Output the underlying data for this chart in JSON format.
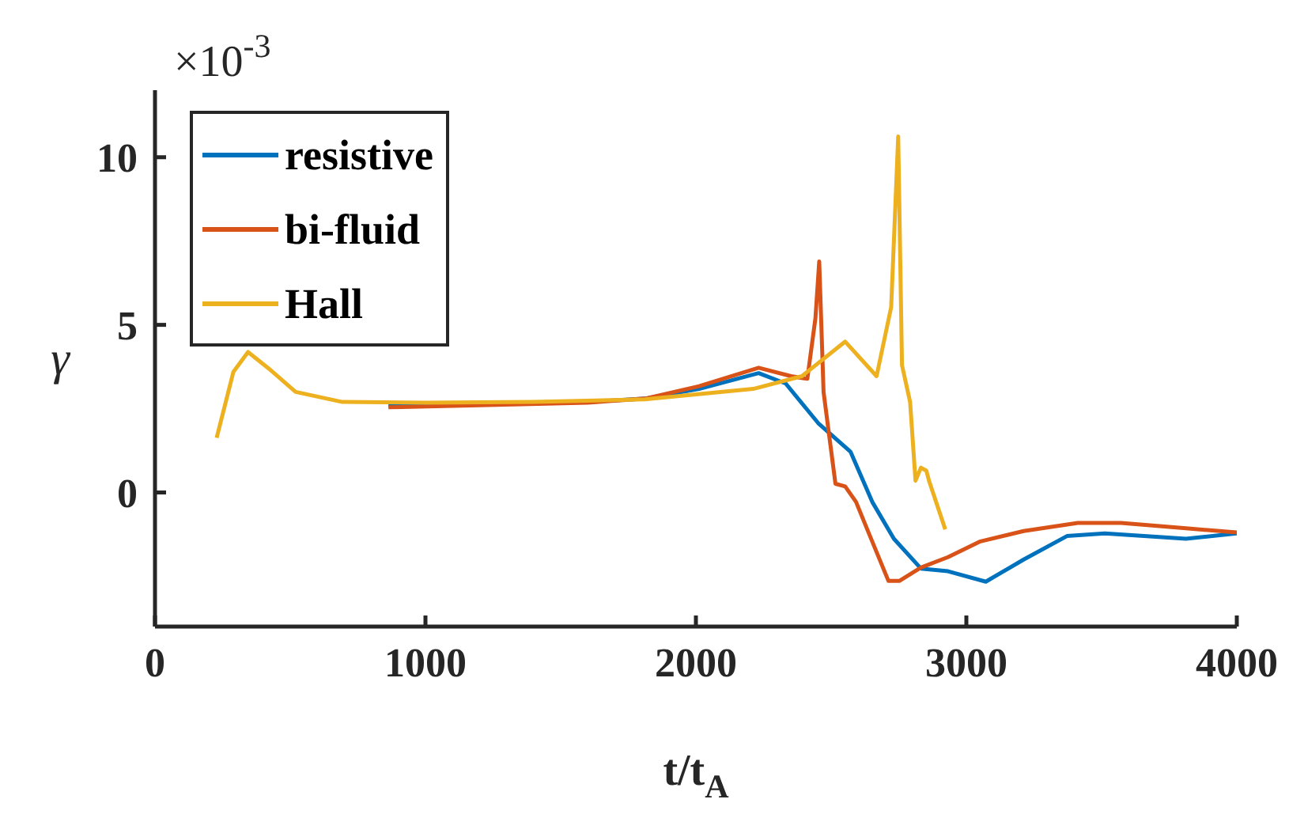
{
  "chart_data": {
    "type": "line",
    "xlabel": "t/t$_{A}$",
    "ylabel": "γ",
    "annotations": [
      "×10$^{-3}$"
    ],
    "xlim": [
      0,
      4000
    ],
    "ylim": [
      -4,
      12
    ],
    "xticks": [
      0,
      1000,
      2000,
      3000,
      4000
    ],
    "yticks": [
      0,
      5,
      10
    ],
    "legend": "top left",
    "marker": "none",
    "line_style": "solid",
    "series": [
      {
        "name": "resistive",
        "color": "#0072bd",
        "x": [
          863,
          1200,
          1600,
          1812,
          2012,
          2232,
          2332,
          2452,
          2572,
          2652,
          2732,
          2832,
          2932,
          3072,
          3212,
          3372,
          3512,
          3812,
          4000
        ],
        "values": [
          2.6,
          2.65,
          2.7,
          2.8,
          3.09,
          3.56,
          3.25,
          2.07,
          1.21,
          -0.28,
          -1.38,
          -2.27,
          -2.35,
          -2.66,
          -2.0,
          -1.3,
          -1.22,
          -1.38,
          -1.22
        ]
      },
      {
        "name": "bi-fluid",
        "color": "#d95319",
        "x": [
          863,
          1200,
          1600,
          1812,
          2012,
          2232,
          2352,
          2412,
          2442,
          2456,
          2472,
          2492,
          2516,
          2552,
          2592,
          2632,
          2712,
          2752,
          2832,
          2932,
          3052,
          3212,
          3412,
          3572,
          3812,
          4000
        ],
        "values": [
          2.54,
          2.6,
          2.68,
          2.8,
          3.17,
          3.72,
          3.47,
          3.39,
          5.2,
          6.89,
          3.0,
          1.75,
          0.26,
          0.18,
          -0.28,
          -1.07,
          -2.64,
          -2.64,
          -2.24,
          -1.93,
          -1.46,
          -1.15,
          -0.91,
          -0.91,
          -1.07,
          -1.19
        ]
      },
      {
        "name": "Hall",
        "color": "#edb120",
        "x": [
          228,
          290,
          344,
          420,
          520,
          693,
          1000,
          1400,
          1812,
          2212,
          2392,
          2552,
          2668,
          2722,
          2748,
          2762,
          2792,
          2812,
          2832,
          2852,
          2862,
          2922
        ],
        "values": [
          1.63,
          3.6,
          4.19,
          3.7,
          3.0,
          2.7,
          2.68,
          2.7,
          2.78,
          3.09,
          3.47,
          4.5,
          3.47,
          5.53,
          10.62,
          3.8,
          2.7,
          0.35,
          0.74,
          0.65,
          0.35,
          -1.1
        ]
      }
    ]
  }
}
